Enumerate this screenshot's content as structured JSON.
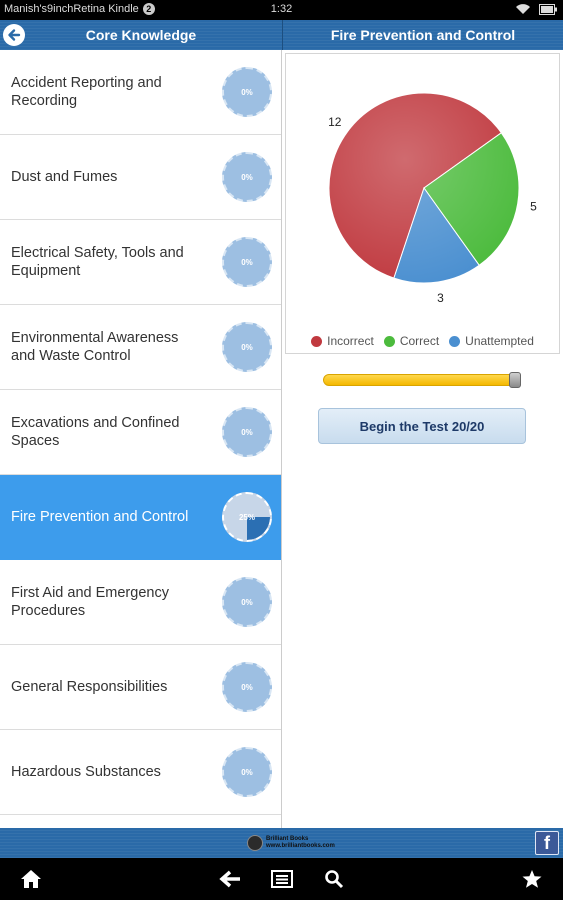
{
  "status_bar": {
    "device_name": "Manish's9inchRetina Kindle",
    "notification_count": "2",
    "time": "1:32",
    "icons": [
      "wifi-icon",
      "battery-icon"
    ]
  },
  "header": {
    "left_title": "Core Knowledge",
    "right_title": "Fire Prevention and Control"
  },
  "topics": [
    {
      "label": "Accident Reporting and Recording",
      "progress": "0%",
      "active": false
    },
    {
      "label": "Dust and Fumes",
      "progress": "0%",
      "active": false
    },
    {
      "label": "Electrical Safety, Tools and Equipment",
      "progress": "0%",
      "active": false
    },
    {
      "label": "Environmental Awareness and Waste Control",
      "progress": "0%",
      "active": false
    },
    {
      "label": "Excavations and Confined Spaces",
      "progress": "0%",
      "active": false
    },
    {
      "label": "Fire Prevention and Control",
      "progress": "25%",
      "active": true
    },
    {
      "label": "First Aid and Emergency Procedures",
      "progress": "0%",
      "active": false
    },
    {
      "label": "General Responsibilities",
      "progress": "0%",
      "active": false
    },
    {
      "label": "Hazardous Substances",
      "progress": "0%",
      "active": false
    }
  ],
  "chart_data": {
    "type": "pie",
    "slices": [
      {
        "name": "Incorrect",
        "value": 12,
        "color": "#c0393f"
      },
      {
        "name": "Correct",
        "value": 5,
        "color": "#4cbb3d"
      },
      {
        "name": "Unattempted",
        "value": 3,
        "color": "#4a8fd0"
      }
    ],
    "legend_position": "bottom"
  },
  "slider": {
    "fraction": 1.0
  },
  "begin_button": {
    "label": "Begin the Test 20/20"
  },
  "footer": {
    "logo_line1": "Brilliant Books",
    "logo_line2": "www.brilliantbooks.com"
  },
  "nav_icons": [
    "home-icon",
    "back-arrow-icon",
    "menu-icon",
    "search-icon",
    "star-icon"
  ]
}
